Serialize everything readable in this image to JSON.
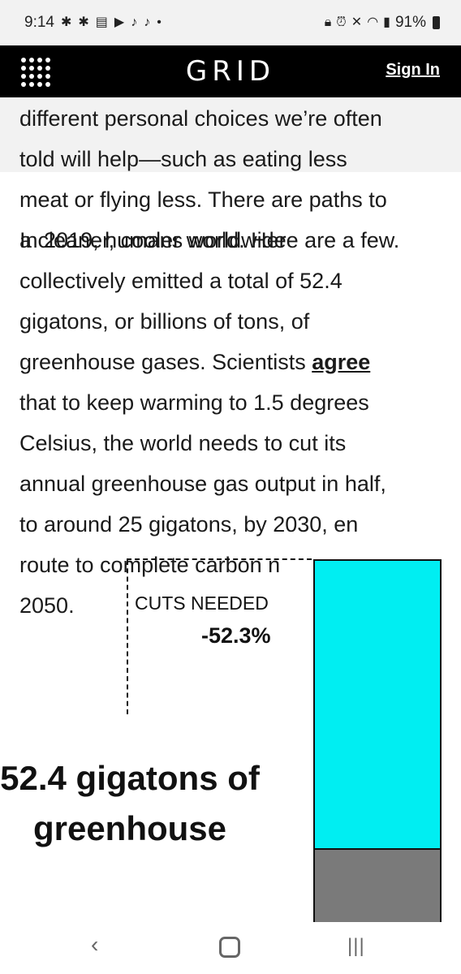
{
  "status_bar": {
    "time": "9:14",
    "left_icons": [
      "slack-icon",
      "slack-icon",
      "message-icon",
      "youtube-icon",
      "tiktok-icon",
      "tiktok-icon",
      "dot-icon"
    ],
    "right_icons": [
      "lock-icon",
      "alarm-icon",
      "mute-icon",
      "wifi-icon",
      "signal-icon"
    ],
    "battery": "91%"
  },
  "header": {
    "logo": "GRID",
    "sign_in": "Sign In"
  },
  "article": {
    "lines_a": [
      "different personal choices we’re often",
      "told will help—such as eating less",
      "meat or flying less. There are paths to",
      "a cleaner, cooler world. Here are a few."
    ],
    "overlay_line": "In 2019, humans worldwide",
    "p2_line1": "collectively emitted a total of 52.4",
    "p2_line2": "gigatons, or billions of tons, of",
    "p2_line3_pre": "greenhouse gases. Scientists ",
    "p2_link": "agree",
    "p2_line4": "that to keep warming to 1.5 degrees",
    "p2_line5": "Celsius, the world needs to cut its",
    "p2_line6": "annual greenhouse gas output in half,",
    "p2_line7": "to around 25 gigatons, by 2030, en",
    "p2_line8": "route to complete carbon n",
    "p2_line9": "2050."
  },
  "chart_data": {
    "type": "bar",
    "cuts_label": "CUTS NEEDED",
    "cuts_value": "-52.3%",
    "cut_fraction": 0.523,
    "total_label": "52.4 gigatons of greenhouse",
    "colors": {
      "cut": "#00eef2",
      "remaining": "#7a7a7a"
    }
  },
  "nav_bar": {
    "back": "‹",
    "recent": "|||"
  }
}
